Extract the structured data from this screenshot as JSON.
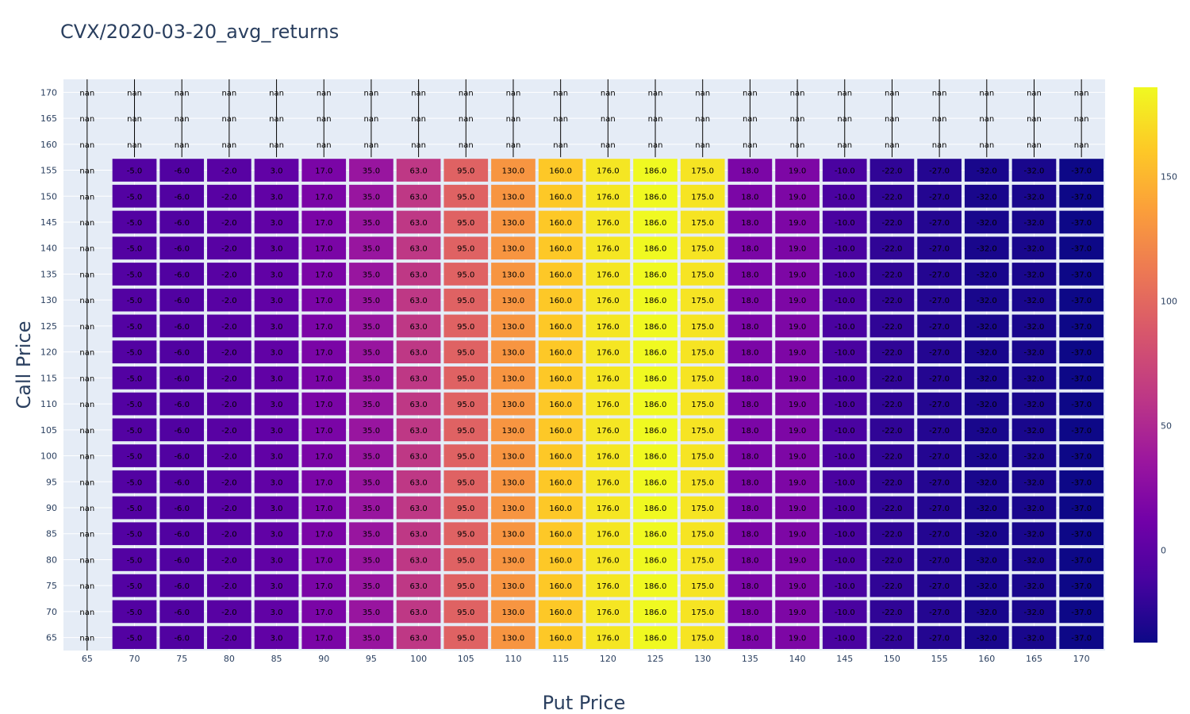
{
  "chart_data": {
    "type": "heatmap",
    "title": "CVX/2020-03-20_avg_returns",
    "xlabel": "Put Price",
    "ylabel": "Call Price",
    "x": [
      65,
      70,
      75,
      80,
      85,
      90,
      95,
      100,
      105,
      110,
      115,
      120,
      125,
      130,
      135,
      140,
      145,
      150,
      155,
      160,
      165,
      170
    ],
    "y": [
      65,
      70,
      75,
      80,
      85,
      90,
      95,
      100,
      105,
      110,
      115,
      120,
      125,
      130,
      135,
      140,
      145,
      150,
      155,
      160,
      165,
      170
    ],
    "x_tick_labels": [
      "65",
      "70",
      "75",
      "80",
      "85",
      "90",
      "95",
      "100",
      "105",
      "110",
      "115",
      "120",
      "125",
      "130",
      "135",
      "140",
      "145",
      "150",
      "155",
      "160",
      "165",
      "170"
    ],
    "y_tick_labels": [
      "65",
      "70",
      "75",
      "80",
      "85",
      "90",
      "95",
      "100",
      "105",
      "110",
      "115",
      "120",
      "125",
      "130",
      "135",
      "140",
      "145",
      "150",
      "155",
      "160",
      "165",
      "170"
    ],
    "row_values_for_call_65_to_155": [
      null,
      -5,
      -6,
      -2,
      3,
      17,
      35,
      63,
      95,
      130,
      160,
      176,
      186,
      175,
      18,
      19,
      -10,
      -22,
      -27,
      -32,
      -32,
      -37
    ],
    "nan_call_prices": [
      160,
      165,
      170
    ],
    "nan_label": "nan",
    "colorscale": "plasma",
    "color_range": [
      -37,
      186
    ],
    "colorbar_ticks": [
      0,
      50,
      100,
      150
    ],
    "colorbar_tick_labels": [
      "0",
      "50",
      "100",
      "150"
    ],
    "grid": true,
    "colors": {
      "plot_bg": "#e5ecf6",
      "text": "#2a3f5f"
    }
  }
}
